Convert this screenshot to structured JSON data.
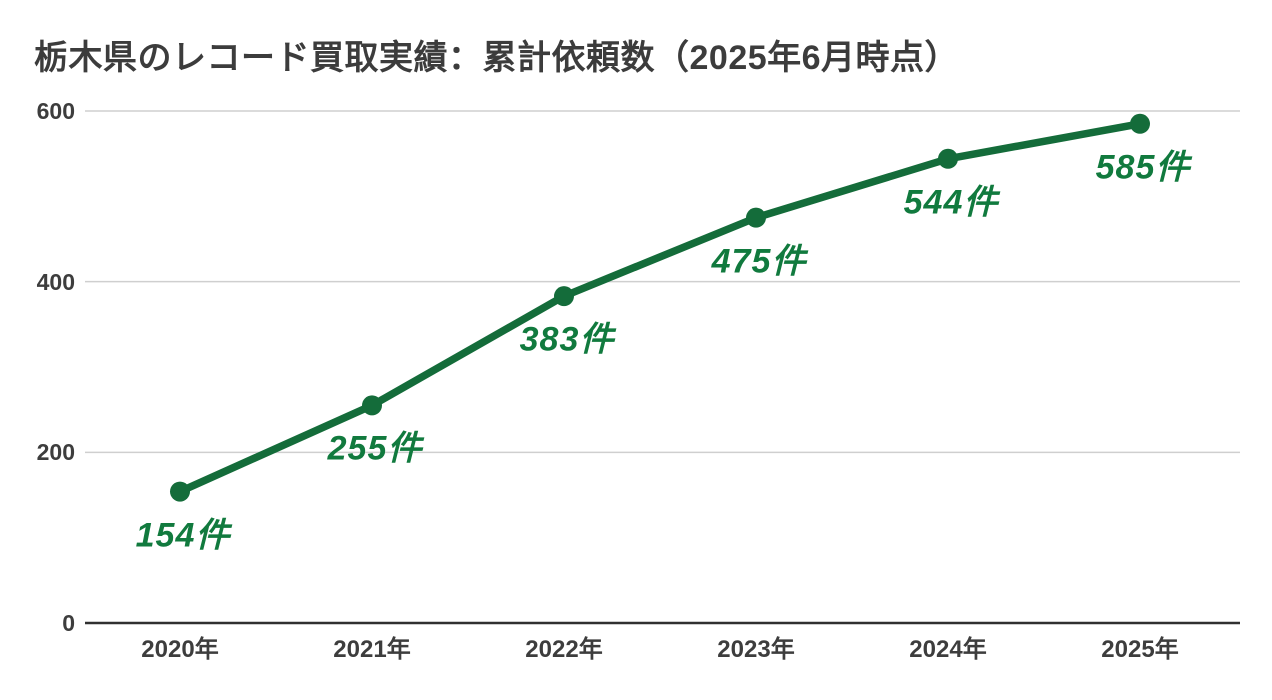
{
  "title": "栃木県のレコード買取実績：累計依頼数（2025年6月時点）",
  "colors": {
    "line": "#146c3a",
    "point": "#146c3a",
    "point_label": "#117a3e",
    "title_text": "#3c3c3c",
    "axis_text": "#3d3d3d",
    "gridline": "#cfcfcf",
    "axis_line": "#303030",
    "background": "#ffffff"
  },
  "chart_data": {
    "type": "line",
    "title": "栃木県のレコード買取実績：累計依頼数（2025年6月時点）",
    "categories": [
      "2020年",
      "2021年",
      "2022年",
      "2023年",
      "2024年",
      "2025年"
    ],
    "values": [
      154,
      255,
      383,
      475,
      544,
      585
    ],
    "point_labels": [
      "154件",
      "255件",
      "383件",
      "475件",
      "544件",
      "585件"
    ],
    "series_name": "累計依頼数",
    "xlabel": "",
    "ylabel": "",
    "ylim": [
      0,
      600
    ],
    "yticks": [
      0,
      200,
      400,
      600
    ],
    "ytick_labels": [
      "0",
      "200",
      "400",
      "600"
    ],
    "grid": "horizontal",
    "legend": "none",
    "marker": "circle",
    "line_style": "solid"
  }
}
